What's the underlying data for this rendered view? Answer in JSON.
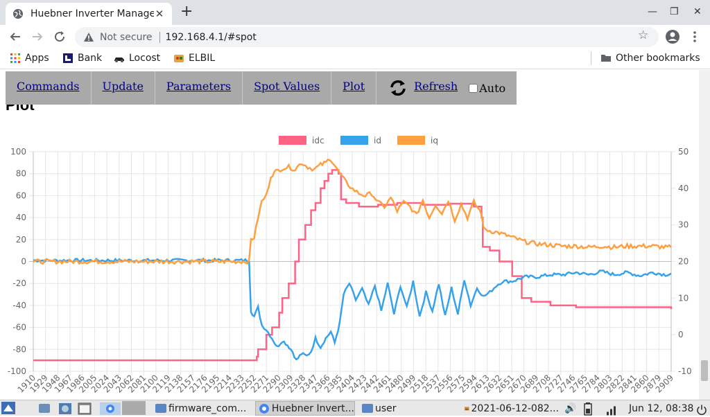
{
  "browser": {
    "tab_title": "Huebner Inverter Manage",
    "new_tab": "+",
    "not_secure": "Not secure",
    "url": "192.168.4.1/#spot"
  },
  "bookmarks": {
    "items": [
      {
        "label": "Apps"
      },
      {
        "label": "Bank"
      },
      {
        "label": "Locost"
      },
      {
        "label": "ELBIL"
      }
    ],
    "other": "Other bookmarks"
  },
  "menu": {
    "items": [
      {
        "label": "Commands"
      },
      {
        "label": "Update"
      },
      {
        "label": "Parameters"
      },
      {
        "label": "Spot Values"
      },
      {
        "label": "Plot"
      }
    ],
    "refresh_label": "Refresh",
    "auto_label": "Auto",
    "auto_checked": false
  },
  "page": {
    "heading": "Plot"
  },
  "chart_data": {
    "type": "line",
    "legend_position": "top-center",
    "grid": true,
    "series": [
      {
        "name": "idc",
        "color": "#ff6384",
        "axis": "right"
      },
      {
        "name": "id",
        "color": "#36a2eb",
        "axis": "left"
      },
      {
        "name": "iq",
        "color": "#ff9f40",
        "axis": "left"
      }
    ],
    "y_left": {
      "min": -100,
      "max": 100,
      "ticks": [
        "100",
        "80",
        "60",
        "40",
        "20",
        "0",
        "-20",
        "-40",
        "-60",
        "-80",
        "-100"
      ]
    },
    "y_right": {
      "min": -10,
      "max": 50,
      "ticks": [
        "50",
        "40",
        "30",
        "20",
        "10",
        "0",
        "-10"
      ]
    },
    "x_ticks": [
      "1910",
      "1929",
      "1948",
      "1967",
      "1986",
      "2005",
      "2024",
      "2043",
      "2062",
      "2081",
      "2100",
      "2119",
      "2138",
      "2157",
      "2176",
      "2195",
      "2214",
      "2233",
      "2252",
      "2271",
      "2290",
      "2309",
      "2328",
      "2347",
      "2366",
      "2385",
      "2404",
      "2423",
      "2442",
      "2461",
      "2480",
      "2499",
      "2518",
      "2537",
      "2556",
      "2575",
      "2594",
      "2613",
      "2632",
      "2651",
      "2670",
      "2689",
      "2708",
      "2727",
      "2746",
      "2765",
      "2784",
      "2803",
      "2822",
      "2841",
      "2860",
      "2879",
      "2909"
    ],
    "x_range": [
      1910,
      2909
    ],
    "idc_points": [
      [
        1910,
        -7
      ],
      [
        2250,
        -7
      ],
      [
        2260,
        -6
      ],
      [
        2262,
        -4
      ],
      [
        2275,
        0
      ],
      [
        2284,
        2
      ],
      [
        2295,
        6
      ],
      [
        2300,
        10
      ],
      [
        2310,
        14
      ],
      [
        2320,
        20
      ],
      [
        2326,
        26
      ],
      [
        2336,
        30
      ],
      [
        2345,
        34
      ],
      [
        2352,
        36
      ],
      [
        2360,
        40
      ],
      [
        2366,
        42
      ],
      [
        2372,
        44
      ],
      [
        2378,
        45
      ],
      [
        2388,
        44
      ],
      [
        2392,
        37
      ],
      [
        2400,
        36
      ],
      [
        2420,
        35
      ],
      [
        2450,
        35.5
      ],
      [
        2480,
        36
      ],
      [
        2520,
        35.5
      ],
      [
        2560,
        35.8
      ],
      [
        2600,
        35
      ],
      [
        2612,
        32
      ],
      [
        2614,
        24
      ],
      [
        2625,
        23
      ],
      [
        2640,
        20
      ],
      [
        2660,
        16
      ],
      [
        2675,
        10
      ],
      [
        2690,
        9
      ],
      [
        2720,
        8
      ],
      [
        2760,
        7.5
      ],
      [
        2840,
        7.5
      ],
      [
        2909,
        7
      ]
    ],
    "id_points": [
      [
        1910,
        1
      ],
      [
        2248,
        1
      ],
      [
        2251,
        -45
      ],
      [
        2256,
        -50
      ],
      [
        2262,
        -42
      ],
      [
        2268,
        -58
      ],
      [
        2275,
        -62
      ],
      [
        2284,
        -70
      ],
      [
        2292,
        -78
      ],
      [
        2300,
        -72
      ],
      [
        2308,
        -76
      ],
      [
        2316,
        -82
      ],
      [
        2322,
        -90
      ],
      [
        2330,
        -84
      ],
      [
        2338,
        -86
      ],
      [
        2345,
        -82
      ],
      [
        2352,
        -70
      ],
      [
        2360,
        -78
      ],
      [
        2368,
        -70
      ],
      [
        2376,
        -64
      ],
      [
        2382,
        -74
      ],
      [
        2390,
        -56
      ],
      [
        2396,
        -30
      ],
      [
        2405,
        -20
      ],
      [
        2415,
        -35
      ],
      [
        2425,
        -25
      ],
      [
        2435,
        -40
      ],
      [
        2445,
        -22
      ],
      [
        2455,
        -45
      ],
      [
        2465,
        -20
      ],
      [
        2475,
        -48
      ],
      [
        2485,
        -22
      ],
      [
        2495,
        -42
      ],
      [
        2505,
        -18
      ],
      [
        2515,
        -50
      ],
      [
        2525,
        -28
      ],
      [
        2535,
        -45
      ],
      [
        2545,
        -20
      ],
      [
        2555,
        -50
      ],
      [
        2565,
        -24
      ],
      [
        2575,
        -48
      ],
      [
        2585,
        -16
      ],
      [
        2595,
        -40
      ],
      [
        2605,
        -24
      ],
      [
        2615,
        -32
      ],
      [
        2625,
        -28
      ],
      [
        2635,
        -22
      ],
      [
        2645,
        -18
      ],
      [
        2660,
        -18
      ],
      [
        2680,
        -14
      ],
      [
        2700,
        -14
      ],
      [
        2720,
        -12
      ],
      [
        2740,
        -12
      ],
      [
        2760,
        -10
      ],
      [
        2780,
        -12
      ],
      [
        2800,
        -9
      ],
      [
        2820,
        -12
      ],
      [
        2840,
        -10
      ],
      [
        2860,
        -13
      ],
      [
        2880,
        -10
      ],
      [
        2900,
        -12
      ],
      [
        2909,
        -11
      ]
    ],
    "iq_points": [
      [
        1910,
        0
      ],
      [
        2248,
        0
      ],
      [
        2251,
        20
      ],
      [
        2256,
        22
      ],
      [
        2262,
        40
      ],
      [
        2268,
        55
      ],
      [
        2275,
        60
      ],
      [
        2282,
        78
      ],
      [
        2290,
        82
      ],
      [
        2300,
        85
      ],
      [
        2310,
        86
      ],
      [
        2320,
        84
      ],
      [
        2330,
        90
      ],
      [
        2340,
        86
      ],
      [
        2350,
        84
      ],
      [
        2360,
        88
      ],
      [
        2368,
        90
      ],
      [
        2375,
        94
      ],
      [
        2382,
        88
      ],
      [
        2390,
        80
      ],
      [
        2400,
        72
      ],
      [
        2410,
        66
      ],
      [
        2420,
        62
      ],
      [
        2430,
        60
      ],
      [
        2440,
        62
      ],
      [
        2450,
        54
      ],
      [
        2460,
        50
      ],
      [
        2470,
        58
      ],
      [
        2480,
        46
      ],
      [
        2490,
        54
      ],
      [
        2500,
        50
      ],
      [
        2510,
        42
      ],
      [
        2520,
        56
      ],
      [
        2530,
        40
      ],
      [
        2540,
        52
      ],
      [
        2550,
        44
      ],
      [
        2560,
        56
      ],
      [
        2570,
        38
      ],
      [
        2580,
        52
      ],
      [
        2590,
        40
      ],
      [
        2600,
        54
      ],
      [
        2612,
        44
      ],
      [
        2615,
        30
      ],
      [
        2625,
        28
      ],
      [
        2640,
        26
      ],
      [
        2660,
        22
      ],
      [
        2680,
        18
      ],
      [
        2700,
        16
      ],
      [
        2720,
        15
      ],
      [
        2740,
        14
      ],
      [
        2760,
        14
      ],
      [
        2780,
        13
      ],
      [
        2800,
        14
      ],
      [
        2820,
        13
      ],
      [
        2840,
        14
      ],
      [
        2860,
        14
      ],
      [
        2880,
        14
      ],
      [
        2900,
        13
      ],
      [
        2909,
        13
      ]
    ]
  },
  "taskbar": {
    "tasks": [
      {
        "label": "firmware_com..."
      },
      {
        "label": "Huebner Invert..."
      },
      {
        "label": "user"
      },
      {
        "label": "2021-06-12-082..."
      }
    ],
    "clock": "Jun 12, 08:38"
  }
}
